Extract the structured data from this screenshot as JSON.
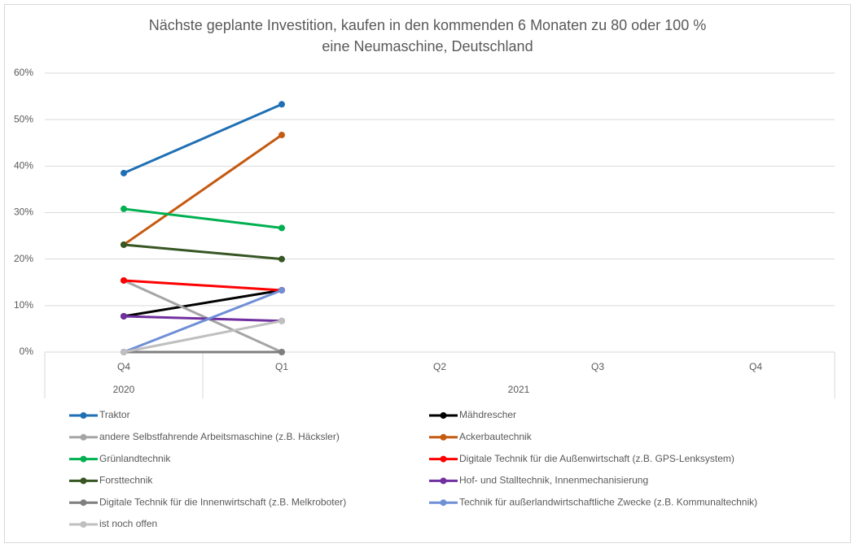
{
  "chart_data": {
    "type": "line",
    "title": [
      "Nächste geplante Investition, kaufen in den kommenden 6 Monaten zu 80 oder 100 %",
      "eine Neumaschine, Deutschland"
    ],
    "categories": [
      "Q4",
      "Q1",
      "Q2",
      "Q3",
      "Q4"
    ],
    "groups": [
      {
        "label": "2020",
        "count": 1
      },
      {
        "label": "2021",
        "count": 4
      }
    ],
    "ylim": [
      0,
      60
    ],
    "yticks": [
      {
        "value": 0,
        "label": "0%"
      },
      {
        "value": 10,
        "label": "10%"
      },
      {
        "value": 20,
        "label": "20%"
      },
      {
        "value": 30,
        "label": "30%"
      },
      {
        "value": 40,
        "label": "40%"
      },
      {
        "value": 50,
        "label": "50%"
      },
      {
        "value": 60,
        "label": "60%"
      }
    ],
    "grid": true,
    "legend": "bottom",
    "series": [
      {
        "name": "Traktor",
        "color": "#1f6fb5",
        "values": [
          38.5,
          53.3,
          null,
          null,
          null
        ]
      },
      {
        "name": "Mähdrescher",
        "color": "#000000",
        "values": [
          7.7,
          13.3,
          null,
          null,
          null
        ]
      },
      {
        "name": "andere Selbstfahrende Arbeitsmaschine (z.B. Häcksler)",
        "color": "#a5a5a5",
        "values": [
          15.4,
          0,
          null,
          null,
          null
        ]
      },
      {
        "name": "Ackerbautechnik",
        "color": "#c55a11",
        "values": [
          23.1,
          46.7,
          null,
          null,
          null
        ]
      },
      {
        "name": "Grünlandtechnik",
        "color": "#00b050",
        "values": [
          30.8,
          26.7,
          null,
          null,
          null
        ]
      },
      {
        "name": "Digitale Technik für die Außenwirtschaft (z.B. GPS-Lenksystem)",
        "color": "#ff0000",
        "values": [
          15.4,
          13.3,
          null,
          null,
          null
        ]
      },
      {
        "name": "Forsttechnik",
        "color": "#375623",
        "values": [
          23.1,
          20.0,
          null,
          null,
          null
        ]
      },
      {
        "name": "Hof- und Stalltechnik, Innenmechanisierung",
        "color": "#7030a0",
        "values": [
          7.7,
          6.7,
          null,
          null,
          null
        ]
      },
      {
        "name": "Digitale Technik für die Innenwirtschaft (z.B. Melkroboter)",
        "color": "#7f7f7f",
        "values": [
          0,
          0,
          null,
          null,
          null
        ]
      },
      {
        "name": "Technik für außerlandwirtschaftliche Zwecke (z.B. Kommunaltechnik)",
        "color": "#6f8fd6",
        "values": [
          0,
          13.3,
          null,
          null,
          null
        ]
      },
      {
        "name": "ist noch offen",
        "color": "#bfbfbf",
        "values": [
          0,
          6.7,
          null,
          null,
          null
        ]
      }
    ]
  }
}
